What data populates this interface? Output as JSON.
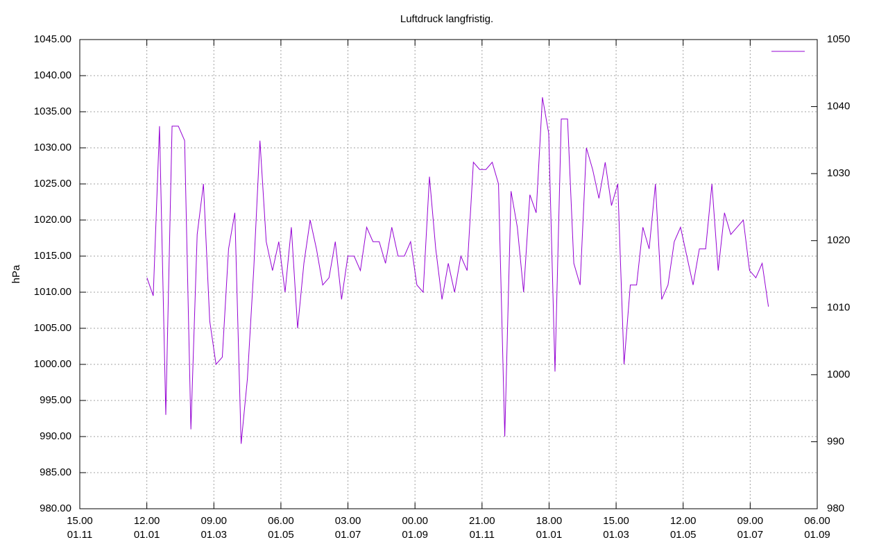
{
  "chart_data": {
    "type": "line",
    "title": "Luftdruck langfristig.",
    "y_label": "hPa",
    "x": [
      61,
      66.7,
      72.4,
      78.1,
      83.8,
      89.5,
      95.2,
      100.9,
      106.6,
      112.3,
      118,
      123.7,
      129.4,
      135.1,
      140.8,
      146.5,
      152.2,
      157.9,
      163.6,
      169.3,
      175,
      180.7,
      186.4,
      192.1,
      197.8,
      203.5,
      209.2,
      214.9,
      220.6,
      226.3,
      232,
      237.7,
      243.4,
      249.1,
      254.8,
      260.5,
      266.2,
      271.9,
      277.6,
      283.3,
      289,
      294.7,
      300.4,
      306.1,
      311.8,
      317.5,
      323.2,
      328.9,
      334.6,
      340.3,
      346,
      351.7,
      357.4,
      363.1,
      368.8,
      374.5,
      380.2,
      385.9,
      391.6,
      397.3,
      403,
      408.7,
      414.4,
      420.1,
      425.8,
      431.5,
      437.2,
      442.9,
      448.6,
      454.3,
      460,
      465.7,
      471.4,
      477.1,
      482.8,
      488.5,
      494.2,
      499.9,
      505.6,
      511.3,
      517,
      522.7,
      528.4,
      534.1,
      539.8,
      545.5,
      551.2,
      556.9,
      562.6,
      568.3,
      574,
      579.7,
      585.4,
      591.1,
      596.8,
      602.5,
      608.2,
      613.9,
      619.6,
      625.3
    ],
    "series": [
      {
        "color": "#9400d3",
        "values": [
          1012,
          1009.5,
          1033,
          993,
          1033,
          1033,
          1031,
          991,
          1018,
          1025,
          1006,
          1000,
          1001,
          1016,
          1021,
          989,
          998,
          1013,
          1031,
          1017,
          1013,
          1017,
          1010,
          1019,
          1005,
          1014,
          1020,
          1016,
          1011,
          1012,
          1017,
          1009,
          1015,
          1015,
          1013,
          1019,
          1017,
          1017,
          1014,
          1019,
          1015,
          1015,
          1017,
          1011,
          1010,
          1026,
          1016,
          1009,
          1014,
          1010,
          1015,
          1013,
          1028,
          1027,
          1027,
          1028,
          1025,
          990,
          1024,
          1019,
          1010,
          1023.5,
          1021,
          1037,
          1032,
          999,
          1034,
          1034,
          1014,
          1011,
          1030,
          1027,
          1023,
          1028,
          1022,
          1025,
          1000,
          1011,
          1011,
          1019,
          1016,
          1025,
          1009,
          1011,
          1017,
          1019,
          1015,
          1011,
          1016,
          1016,
          1025,
          1013,
          1021,
          1018,
          1019,
          1020,
          1013,
          1012,
          1014,
          1008
        ]
      }
    ],
    "xlim": [
      0,
      669.625
    ],
    "xticks": [
      {
        "value": 0,
        "label": "15.00\n01.11"
      },
      {
        "value": 60.875,
        "label": "12.00\n01.01"
      },
      {
        "value": 121.75,
        "label": "09.00\n01.03"
      },
      {
        "value": 182.625,
        "label": "06.00\n01.05"
      },
      {
        "value": 243.5,
        "label": "03.00\n01.07"
      },
      {
        "value": 304.375,
        "label": "00.00\n01.09"
      },
      {
        "value": 365.25,
        "label": "21.00\n01.11"
      },
      {
        "value": 426.125,
        "label": "18.00\n01.01"
      },
      {
        "value": 487,
        "label": "15.00\n01.03"
      },
      {
        "value": 547.875,
        "label": "12.00\n01.05"
      },
      {
        "value": 608.75,
        "label": "09.00\n01.07"
      },
      {
        "value": 669.625,
        "label": "06.00\n01.09"
      }
    ],
    "ylim": [
      980,
      1045
    ],
    "yticks": [
      {
        "value": 980,
        "label": "980.00"
      },
      {
        "value": 985,
        "label": "985.00"
      },
      {
        "value": 990,
        "label": "990.00"
      },
      {
        "value": 995,
        "label": "995.00"
      },
      {
        "value": 1000,
        "label": "1000.00"
      },
      {
        "value": 1005,
        "label": "1005.00"
      },
      {
        "value": 1010,
        "label": "1010.00"
      },
      {
        "value": 1015,
        "label": "1015.00"
      },
      {
        "value": 1020,
        "label": "1020.00"
      },
      {
        "value": 1025,
        "label": "1025.00"
      },
      {
        "value": 1030,
        "label": "1030.00"
      },
      {
        "value": 1035,
        "label": "1035.00"
      },
      {
        "value": 1040,
        "label": "1040.00"
      },
      {
        "value": 1045,
        "label": "1045.00"
      }
    ],
    "y2lim": [
      980,
      1050
    ],
    "y2ticks": [
      980,
      990,
      1000,
      1010,
      1020,
      1030,
      1040,
      1050
    ],
    "grid": true,
    "legend": "top-right"
  }
}
